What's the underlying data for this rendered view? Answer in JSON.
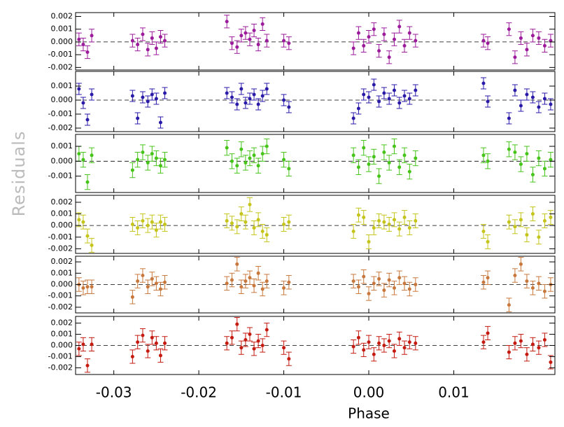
{
  "chart_data": {
    "type": "scatter",
    "xlabel": "Phase",
    "ylabel": "Residuals",
    "xlim": [
      -0.0345,
      0.0219
    ],
    "xticks": [
      -0.03,
      -0.02,
      -0.01,
      {
        "value": 0,
        "label": "0.00"
      },
      0.01
    ],
    "x": [
      -0.0341,
      -0.0336,
      -0.0331,
      -0.0326,
      -0.0278,
      -0.0272,
      -0.0266,
      -0.026,
      -0.0255,
      -0.025,
      -0.0245,
      -0.024,
      -0.0167,
      -0.0161,
      -0.0155,
      -0.015,
      -0.0145,
      -0.014,
      -0.0135,
      -0.013,
      -0.0125,
      -0.012,
      -0.01,
      -0.0094,
      -0.0018,
      -0.0012,
      -0.0006,
      0.0,
      0.0006,
      0.0012,
      0.0018,
      0.0024,
      0.003,
      0.0036,
      0.0042,
      0.0048,
      0.0055,
      0.0135,
      0.014,
      0.0165,
      0.0172,
      0.0179,
      0.0186,
      0.0193,
      0.02,
      0.0207,
      0.0214
    ],
    "series": [
      {
        "color": "#9b1b9b",
        "error": 0.0005,
        "ylim": [
          -0.0022,
          0.0023
        ],
        "yticks": [
          0.002,
          0.001,
          {
            "value": 0,
            "label": "0.000"
          },
          -0.001,
          -0.002
        ],
        "values": [
          0.0002,
          -0.0002,
          -0.0008,
          0.0005,
          0.0001,
          -0.0002,
          0.0006,
          -0.0006,
          0.0003,
          -0.0005,
          0.0004,
          0.0001,
          0.0016,
          -0.0001,
          -0.0004,
          0.0005,
          0.0007,
          0.0002,
          0.0009,
          -0.0002,
          0.0014,
          0.0001,
          0.0001,
          -0.0001,
          -0.0005,
          0.0007,
          -0.0003,
          0.0004,
          0.001,
          -0.0007,
          0.0006,
          -0.0012,
          0.0002,
          0.0012,
          -0.0003,
          0.0007,
          0.0001,
          0.0001,
          -0.0001,
          0.001,
          -0.0012,
          0.0003,
          -0.0006,
          0.0005,
          0.0003,
          -0.0003,
          0.0001
        ]
      },
      {
        "color": "#2a1aa8",
        "error": 0.0004,
        "ylim": [
          -0.00225,
          0.00205
        ],
        "yticks": [
          0.001,
          {
            "value": 0,
            "label": "0.000"
          },
          -0.001,
          -0.002
        ],
        "values": [
          0.0008,
          -0.0002,
          -0.0014,
          0.0004,
          0.0003,
          -0.0013,
          0.0002,
          -0.0001,
          0.0004,
          0.0001,
          -0.0016,
          0.0005,
          0.0005,
          0.0002,
          -0.0003,
          0.0008,
          -0.0002,
          0.0001,
          0.0004,
          -0.0003,
          0.0003,
          0.0008,
          0.0,
          -0.0005,
          -0.0013,
          -0.0006,
          0.0004,
          0.0002,
          0.0011,
          -0.0001,
          0.0005,
          0.0001,
          0.0007,
          -0.0002,
          0.0003,
          0.0001,
          0.0007,
          0.0012,
          -0.0001,
          -0.0013,
          0.0007,
          -0.0004,
          0.0004,
          0.0002,
          -0.0005,
          0.0001,
          -0.0003
        ]
      },
      {
        "color": "#46c41a",
        "error": 0.0005,
        "ylim": [
          -0.0021,
          0.0018
        ],
        "yticks": [
          0.001,
          {
            "value": 0,
            "label": "0.000"
          },
          -0.001
        ],
        "values": [
          0.0005,
          0.0001,
          -0.0014,
          0.0004,
          -0.0006,
          0.0001,
          0.0006,
          -0.0001,
          0.0005,
          0.0002,
          -0.0003,
          0.0001,
          0.0009,
          0.0,
          -0.0003,
          0.0008,
          -0.0001,
          0.0002,
          0.0004,
          -0.0003,
          0.0005,
          0.001,
          0.0001,
          -0.0005,
          0.0004,
          -0.0004,
          0.0009,
          -0.0002,
          0.0003,
          -0.001,
          0.0006,
          -0.0001,
          0.001,
          -0.0004,
          0.0004,
          -0.0007,
          0.0002,
          0.0004,
          0.0,
          0.0008,
          0.0006,
          -0.0002,
          0.0005,
          -0.0009,
          0.0002,
          -0.0005,
          0.0001
        ]
      },
      {
        "color": "#c4c41a",
        "error": 0.0006,
        "ylim": [
          -0.0024,
          0.0026
        ],
        "yticks": [
          0.002,
          0.001,
          {
            "value": 0,
            "label": "0.000"
          },
          -0.001,
          -0.002
        ],
        "values": [
          0.0005,
          0.0003,
          -0.0009,
          -0.0017,
          0.0001,
          -0.0002,
          0.0004,
          0.0,
          0.0003,
          -0.0004,
          0.0003,
          0.0001,
          0.0004,
          0.0002,
          -0.0001,
          0.001,
          0.0003,
          0.0018,
          -0.0002,
          0.0005,
          -0.0005,
          -0.0008,
          0.0001,
          0.0003,
          -0.0005,
          0.0009,
          0.0007,
          -0.0014,
          -0.0002,
          0.0004,
          0.0003,
          0.0001,
          0.0005,
          -0.0003,
          0.0007,
          -0.0002,
          0.0004,
          -0.0005,
          -0.0014,
          0.0003,
          -0.0001,
          0.0005,
          -0.0008,
          0.001,
          -0.001,
          0.0004,
          0.0007
        ]
      },
      {
        "color": "#c8783c",
        "error": 0.0006,
        "ylim": [
          -0.0025,
          0.0025
        ],
        "yticks": [
          0.002,
          0.001,
          {
            "value": 0,
            "label": "0.000"
          },
          -0.001,
          -0.002
        ],
        "values": [
          0.0,
          -0.0003,
          -0.0002,
          -0.0002,
          -0.0011,
          0.0003,
          0.0008,
          -0.0002,
          0.0005,
          0.0001,
          -0.0004,
          0.0002,
          0.0001,
          0.0004,
          0.0018,
          -0.0002,
          0.0003,
          0.0006,
          -0.0001,
          0.001,
          -0.0004,
          0.0003,
          -0.0003,
          0.0002,
          0.0003,
          -0.0002,
          0.0007,
          -0.0008,
          0.0001,
          0.0005,
          -0.0005,
          0.0004,
          -0.0003,
          0.0006,
          0.0001,
          -0.0004,
          0.0,
          0.0002,
          0.0006,
          -0.0018,
          0.0008,
          0.0018,
          0.0003,
          -0.0003,
          0.0001,
          -0.0006,
          0.0
        ]
      },
      {
        "color": "#c41a10",
        "error": 0.0006,
        "ylim": [
          -0.0026,
          0.0026
        ],
        "yticks": [
          0.002,
          0.001,
          {
            "value": 0,
            "label": "0.000"
          },
          -0.001,
          -0.002
        ],
        "values": [
          -0.0003,
          0.0001,
          -0.0018,
          0.0001,
          -0.001,
          0.0003,
          0.0009,
          -0.0005,
          0.0007,
          0.0002,
          -0.0009,
          0.0002,
          0.0002,
          0.0007,
          0.0019,
          -0.0002,
          0.0005,
          0.001,
          -0.0003,
          0.0004,
          0.0,
          0.0014,
          -0.0002,
          -0.0012,
          -0.0001,
          0.0007,
          -0.0004,
          0.0003,
          -0.0008,
          0.0002,
          0.0,
          0.0004,
          -0.0005,
          0.0006,
          -0.0002,
          0.0003,
          0.0002,
          0.0003,
          0.0011,
          -0.0006,
          0.0002,
          0.0004,
          -0.0008,
          0.0001,
          -0.0002,
          0.0005,
          -0.0015
        ]
      }
    ]
  }
}
